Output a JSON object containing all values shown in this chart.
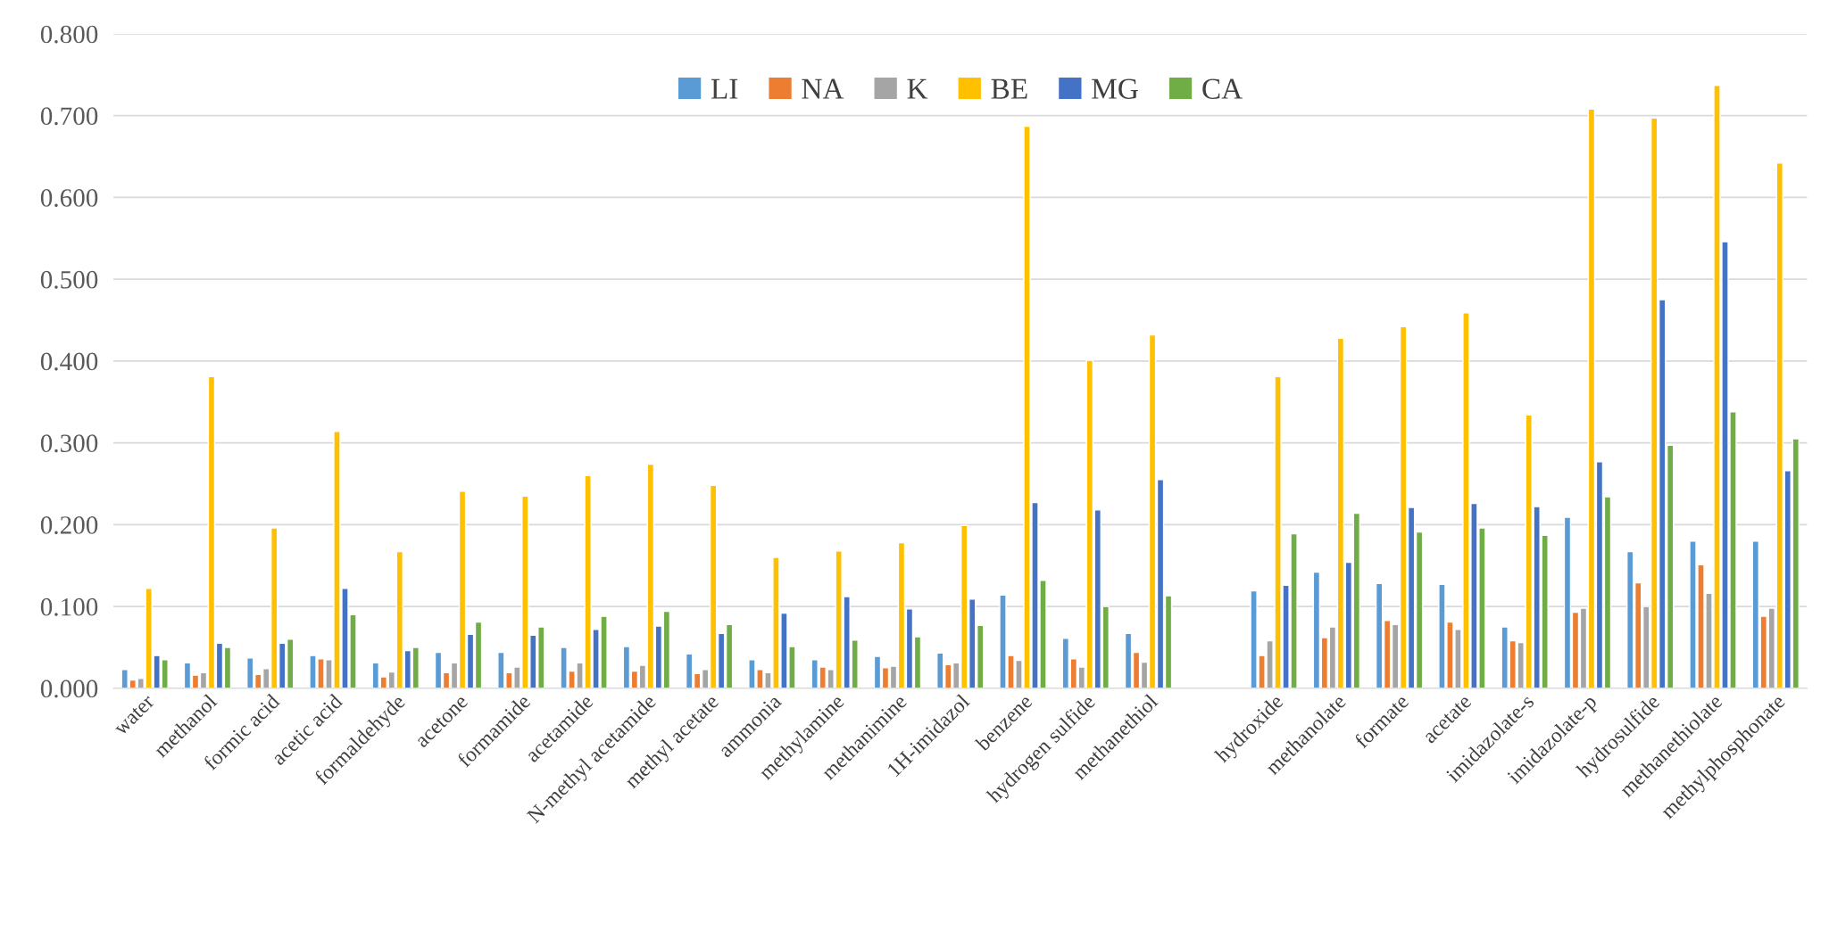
{
  "chart_data": {
    "type": "bar",
    "categories": [
      "water",
      "methanol",
      "formic acid",
      "acetic acid",
      "formaldehyde",
      "acetone",
      "formamide",
      "acetamide",
      "N-methyl acetamide",
      "methyl acetate",
      "ammonia",
      "methylamine",
      "methanimine",
      "1H-imidazol",
      "benzene",
      "hydrogen sulfide",
      "methanethiol",
      null,
      "hydroxide",
      "methanolate",
      "formate",
      "acetate",
      "imidazolate-s",
      "imidazolate-p",
      "hydrosulfide",
      "methanethiolate",
      "methylphosphonate"
    ],
    "series": [
      {
        "name": "LI",
        "color": "#5b9bd5",
        "values": [
          0.023,
          0.031,
          0.037,
          0.04,
          0.031,
          0.044,
          0.044,
          0.05,
          0.051,
          0.042,
          0.035,
          0.035,
          0.039,
          0.043,
          0.114,
          0.061,
          0.067,
          null,
          0.119,
          0.142,
          0.128,
          0.127,
          0.075,
          0.209,
          0.167,
          0.18,
          0.18
        ]
      },
      {
        "name": "NA",
        "color": "#ed7d31",
        "values": [
          0.01,
          0.016,
          0.017,
          0.036,
          0.014,
          0.019,
          0.019,
          0.021,
          0.021,
          0.018,
          0.023,
          0.026,
          0.025,
          0.029,
          0.04,
          0.036,
          0.044,
          null,
          0.04,
          0.062,
          0.083,
          0.081,
          0.058,
          0.093,
          0.129,
          0.151,
          0.088
        ]
      },
      {
        "name": "K",
        "color": "#a5a5a5",
        "values": [
          0.012,
          0.019,
          0.024,
          0.035,
          0.02,
          0.031,
          0.026,
          0.031,
          0.028,
          0.023,
          0.019,
          0.023,
          0.027,
          0.031,
          0.034,
          0.026,
          0.032,
          null,
          0.058,
          0.075,
          0.078,
          0.072,
          0.056,
          0.098,
          0.1,
          0.116,
          0.098
        ]
      },
      {
        "name": "BE",
        "color": "#ffc000",
        "values": [
          0.122,
          0.381,
          0.196,
          0.314,
          0.167,
          0.241,
          0.235,
          0.26,
          0.274,
          0.248,
          0.16,
          0.168,
          0.178,
          0.199,
          0.687,
          0.401,
          0.432,
          null,
          0.381,
          0.428,
          0.442,
          0.459,
          0.334,
          0.708,
          0.697,
          0.737,
          0.642
        ]
      },
      {
        "name": "MG",
        "color": "#4472c4",
        "values": [
          0.04,
          0.055,
          0.055,
          0.122,
          0.046,
          0.066,
          0.065,
          0.072,
          0.076,
          0.067,
          0.092,
          0.112,
          0.097,
          0.109,
          0.227,
          0.218,
          0.255,
          null,
          0.126,
          0.154,
          0.221,
          0.226,
          0.222,
          0.277,
          0.475,
          0.546,
          0.266
        ]
      },
      {
        "name": "CA",
        "color": "#70ad47",
        "values": [
          0.035,
          0.05,
          0.06,
          0.09,
          0.05,
          0.081,
          0.075,
          0.088,
          0.094,
          0.078,
          0.051,
          0.059,
          0.063,
          0.077,
          0.132,
          0.1,
          0.113,
          null,
          0.189,
          0.214,
          0.191,
          0.196,
          0.187,
          0.234,
          0.297,
          0.338,
          0.305
        ]
      }
    ],
    "ylim": [
      0,
      0.8
    ],
    "yticks": [
      {
        "value": 0,
        "label": "0.000"
      },
      {
        "value": 0.1,
        "label": "0.100"
      },
      {
        "value": 0.2,
        "label": "0.200"
      },
      {
        "value": 0.3,
        "label": "0.300"
      },
      {
        "value": 0.4,
        "label": "0.400"
      },
      {
        "value": 0.5,
        "label": "0.500"
      },
      {
        "value": 0.6,
        "label": "0.600"
      },
      {
        "value": 0.7,
        "label": "0.700"
      },
      {
        "value": 0.8,
        "label": "0.800"
      }
    ],
    "grid": "y",
    "legend": "top"
  }
}
